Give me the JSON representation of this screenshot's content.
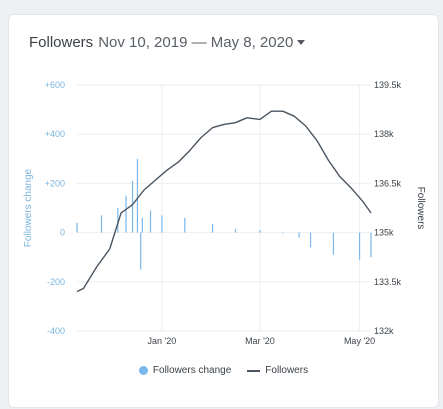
{
  "header": {
    "metric_label": "Followers",
    "range_label": "Nov 10, 2019 — May 8, 2020"
  },
  "legend": {
    "items": [
      {
        "label": "Followers change",
        "color": "#78b8ec",
        "shape": "dot"
      },
      {
        "label": "Followers",
        "color": "#4a5561",
        "shape": "line"
      }
    ]
  },
  "colors": {
    "bars": "#78b8ec",
    "line": "#4a5561",
    "grid": "#eceef1",
    "left_axis": "#7bb5dd",
    "right_axis": "#3d4349"
  },
  "chart_data": {
    "type": "bar+line",
    "x_range": [
      "2019-11-10",
      "2020-05-08"
    ],
    "x_ticks": [
      {
        "label": "Jan '20",
        "date": "2020-01-01"
      },
      {
        "label": "Mar '20",
        "date": "2020-03-01"
      },
      {
        "label": "May '20",
        "date": "2020-05-01"
      }
    ],
    "y_left": {
      "title": "Followers change",
      "range": [
        -400,
        600
      ],
      "ticks": [
        {
          "value": 600,
          "label": "+600"
        },
        {
          "value": 400,
          "label": "+400"
        },
        {
          "value": 200,
          "label": "+200"
        },
        {
          "value": 0,
          "label": "0"
        },
        {
          "value": -200,
          "label": "-200"
        },
        {
          "value": -400,
          "label": "-400"
        }
      ]
    },
    "y_right": {
      "title": "Followers",
      "range": [
        132000,
        139500
      ],
      "ticks": [
        {
          "value": 139500,
          "label": "139.5k"
        },
        {
          "value": 138000,
          "label": "138k"
        },
        {
          "value": 136500,
          "label": "136.5k"
        },
        {
          "value": 135000,
          "label": "135k"
        },
        {
          "value": 133500,
          "label": "133.5k"
        },
        {
          "value": 132000,
          "label": "132k"
        }
      ]
    },
    "series": [
      {
        "name": "Followers change",
        "type": "bar",
        "axis": "left",
        "x": [
          "2019-11-10",
          "2019-11-25",
          "2019-12-05",
          "2019-12-10",
          "2019-12-14",
          "2019-12-17",
          "2019-12-19",
          "2019-12-20",
          "2019-12-25",
          "2020-01-01",
          "2020-01-15",
          "2020-02-01",
          "2020-02-15",
          "2020-03-01",
          "2020-03-15",
          "2020-03-25",
          "2020-04-01",
          "2020-04-15",
          "2020-05-01",
          "2020-05-08"
        ],
        "values": [
          40,
          70,
          100,
          150,
          210,
          300,
          -150,
          60,
          90,
          70,
          60,
          35,
          15,
          10,
          0,
          -20,
          -60,
          -90,
          -110,
          -100
        ]
      },
      {
        "name": "Followers",
        "type": "line",
        "axis": "right",
        "x": [
          "2019-11-10",
          "2019-11-14",
          "2019-11-22",
          "2019-11-30",
          "2019-12-07",
          "2019-12-14",
          "2019-12-21",
          "2019-12-28",
          "2020-01-04",
          "2020-01-11",
          "2020-01-18",
          "2020-01-25",
          "2020-02-01",
          "2020-02-08",
          "2020-02-15",
          "2020-02-22",
          "2020-03-01",
          "2020-03-08",
          "2020-03-15",
          "2020-03-22",
          "2020-03-29",
          "2020-04-05",
          "2020-04-12",
          "2020-04-19",
          "2020-04-26",
          "2020-05-03",
          "2020-05-08"
        ],
        "values": [
          133200,
          133300,
          133950,
          134500,
          135600,
          135850,
          136300,
          136600,
          136900,
          137150,
          137500,
          137900,
          138200,
          138300,
          138350,
          138500,
          138450,
          138700,
          138700,
          138550,
          138250,
          137800,
          137200,
          136700,
          136350,
          135950,
          135600
        ]
      }
    ],
    "grid": true,
    "legend_position": "bottom-center"
  }
}
